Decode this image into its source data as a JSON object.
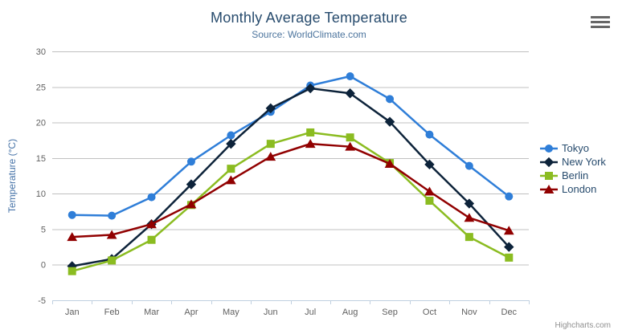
{
  "chart_data": {
    "type": "line",
    "title": "Monthly Average Temperature",
    "subtitle": "Source: WorldClimate.com",
    "categories": [
      "Jan",
      "Feb",
      "Mar",
      "Apr",
      "May",
      "Jun",
      "Jul",
      "Aug",
      "Sep",
      "Oct",
      "Nov",
      "Dec"
    ],
    "series": [
      {
        "name": "Tokyo",
        "color": "#2f7ed8",
        "marker": "circle",
        "values": [
          7.0,
          6.9,
          9.5,
          14.5,
          18.2,
          21.5,
          25.2,
          26.5,
          23.3,
          18.3,
          13.9,
          9.6
        ]
      },
      {
        "name": "New York",
        "color": "#0d233a",
        "marker": "diamond",
        "values": [
          -0.2,
          0.8,
          5.7,
          11.3,
          17.0,
          22.0,
          24.8,
          24.1,
          20.1,
          14.1,
          8.6,
          2.5
        ]
      },
      {
        "name": "Berlin",
        "color": "#8bbc21",
        "marker": "square",
        "values": [
          -0.9,
          0.6,
          3.5,
          8.4,
          13.5,
          17.0,
          18.6,
          17.9,
          14.3,
          9.0,
          3.9,
          1.0
        ]
      },
      {
        "name": "London",
        "color": "#910000",
        "marker": "triangle",
        "values": [
          3.9,
          4.2,
          5.7,
          8.5,
          11.9,
          15.2,
          17.0,
          16.6,
          14.2,
          10.3,
          6.6,
          4.8
        ]
      }
    ],
    "xlabel": "",
    "ylabel": "Temperature (°C)",
    "ylim": [
      -5,
      30
    ],
    "ytick_step": 5,
    "grid": true,
    "legend_position": "right"
  },
  "credits": {
    "label": "Highcharts.com"
  },
  "export_menu": {
    "icon": "hamburger-icon"
  },
  "colors": {
    "title": "#274b6d",
    "subtitle": "#4d759e",
    "axis_title": "#4572a7",
    "tick_label": "#606060",
    "grid": "#c0c0c0",
    "axis_line": "#c0d0e0",
    "credits": "#909090",
    "export_icon": "#666666"
  }
}
